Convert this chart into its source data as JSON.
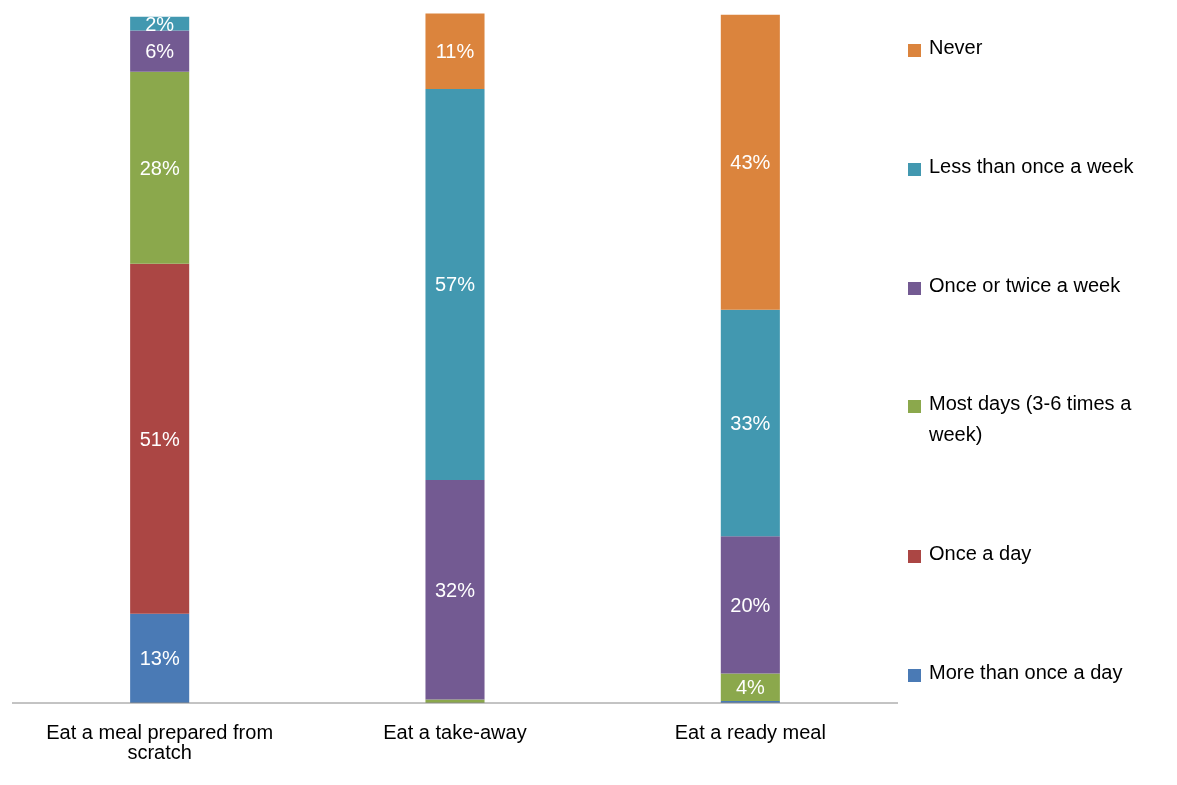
{
  "chart_data": {
    "type": "bar",
    "stacked": true,
    "categories": [
      "Eat a meal prepared from scratch",
      "Eat a take-away",
      "Eat a ready meal"
    ],
    "series": [
      {
        "name": "More than once a day",
        "color": "#4a7ab5",
        "values": [
          13,
          0,
          0.3
        ],
        "value_labels": [
          "13%",
          null,
          null
        ]
      },
      {
        "name": "Once a day",
        "color": "#ab4644",
        "values": [
          51,
          0,
          0
        ],
        "value_labels": [
          "51%",
          null,
          null
        ]
      },
      {
        "name": "Most days  (3-6 times a week)",
        "color": "#8ba84c",
        "values": [
          28,
          0.5,
          4
        ],
        "value_labels": [
          "28%",
          null,
          "4%"
        ]
      },
      {
        "name": "Once or twice a week",
        "color": "#735a92",
        "values": [
          6,
          32,
          20
        ],
        "value_labels": [
          "6%",
          "32%",
          "20%"
        ]
      },
      {
        "name": "Less than once a week",
        "color": "#4298b0",
        "values": [
          2,
          57,
          33
        ],
        "value_labels": [
          "2%",
          "57%",
          "33%"
        ]
      },
      {
        "name": "Never",
        "color": "#db843d",
        "values": [
          0,
          11,
          43
        ],
        "value_labels": [
          null,
          "11%",
          "43%"
        ]
      }
    ],
    "ylim": [
      0,
      101
    ],
    "tick_labels": "x",
    "grid": false,
    "legend": "right"
  }
}
